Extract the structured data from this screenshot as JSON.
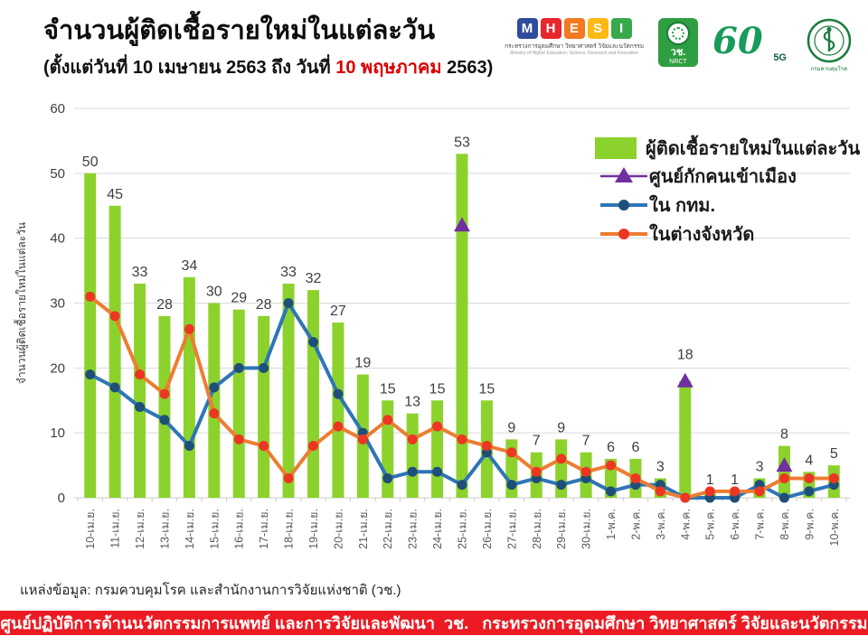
{
  "header": {
    "title": "จำนวนผู้ติดเชื้อรายใหม่ในแต่ละวัน",
    "subtitle_prefix": "(ตั้งแต่วันที่ 10 เมษายน 2563 ถึง วันที่ ",
    "subtitle_highlight": "10 พฤษภาคม",
    "subtitle_suffix": " 2563)"
  },
  "logos": {
    "mhesi": {
      "letters": [
        "M",
        "H",
        "E",
        "S",
        "I"
      ],
      "colors": [
        "#2e4c9b",
        "#e8262d",
        "#f47920",
        "#fdb913",
        "#37a94c"
      ],
      "thai": "กระทรวงการอุดมศึกษา วิทยาศาสตร์ วิจัยและนวัตกรรม",
      "eng": "Ministry of Higher Education, Science, Research and Innovation"
    },
    "nrct": {
      "line1": "วช.",
      "line2": "NRCT"
    },
    "sixty": {
      "number": "60",
      "tag": "5G"
    },
    "ddc": {
      "label": "กรมควบคุมโรค"
    }
  },
  "chart_data": {
    "type": "bar+line",
    "title": "",
    "xlabel": "",
    "ylabel": "จำนวนผู้ติดเชื้อรายใหม่ในแต่ละวัน",
    "ylim": [
      0,
      60
    ],
    "yticks": [
      0,
      10,
      20,
      30,
      40,
      50,
      60
    ],
    "grid": true,
    "legend_position": "top-right",
    "categories": [
      "10-เม.ย.",
      "11-เม.ย.",
      "12-เม.ย.",
      "13-เม.ย.",
      "14-เม.ย.",
      "15-เม.ย.",
      "16-เม.ย.",
      "17-เม.ย.",
      "18-เม.ย.",
      "19-เม.ย.",
      "20-เม.ย.",
      "21-เม.ย.",
      "22-เม.ย.",
      "23-เม.ย.",
      "24-เม.ย.",
      "25-เม.ย.",
      "26-เม.ย.",
      "27-เม.ย.",
      "28-เม.ย.",
      "29-เม.ย.",
      "30-เม.ย.",
      "1-พ.ค.",
      "2-พ.ค.",
      "3-พ.ค.",
      "4-พ.ค.",
      "5-พ.ค.",
      "6-พ.ค.",
      "7-พ.ค.",
      "8-พ.ค.",
      "9-พ.ค.",
      "10-พ.ค."
    ],
    "bar_series": {
      "name": "ผู้ติดเชื้อรายใหม่ในแต่ละวัน",
      "color": "#8cd22c",
      "values": [
        50,
        45,
        33,
        28,
        34,
        30,
        29,
        28,
        33,
        32,
        27,
        19,
        15,
        13,
        15,
        53,
        15,
        9,
        7,
        9,
        7,
        6,
        6,
        3,
        18,
        1,
        1,
        3,
        8,
        4,
        5
      ]
    },
    "line_series": [
      {
        "name": "ศูนย์กักคนเข้าเมือง",
        "marker": "triangle",
        "color": "#7030a0",
        "values": [
          null,
          null,
          null,
          null,
          null,
          null,
          null,
          null,
          null,
          null,
          null,
          null,
          null,
          null,
          null,
          42,
          null,
          null,
          null,
          null,
          null,
          null,
          null,
          null,
          18,
          null,
          null,
          null,
          5,
          null,
          null
        ]
      },
      {
        "name": "ใน กทม.",
        "marker": "circle",
        "color": "#2e75b6",
        "marker_color": "#1f4e79",
        "values": [
          19,
          17,
          14,
          12,
          8,
          17,
          20,
          20,
          30,
          24,
          16,
          10,
          3,
          4,
          4,
          2,
          7,
          2,
          3,
          2,
          3,
          1,
          2,
          2,
          0,
          0,
          0,
          2,
          0,
          1,
          2
        ]
      },
      {
        "name": "ในต่างจังหวัด",
        "marker": "circle",
        "color": "#ed7d31",
        "marker_color": "#ed3524",
        "values": [
          31,
          28,
          19,
          16,
          26,
          13,
          9,
          8,
          3,
          8,
          11,
          9,
          12,
          9,
          11,
          9,
          8,
          7,
          4,
          6,
          4,
          5,
          3,
          1,
          0,
          1,
          1,
          1,
          3,
          3,
          3
        ]
      }
    ]
  },
  "source": "แหล่งข้อมูล: กรมควบคุมโรค และสำนักงานการวิจัยแห่งชาติ (วช.)",
  "footer": "ศูนย์ปฏิบัติการด้านนวัตกรรมการแพทย์ และการวิจัยและพัฒนา  วช.   กระทรวงการอุดมศึกษา วิทยาศาสตร์ วิจัยและนวัตกรรม"
}
